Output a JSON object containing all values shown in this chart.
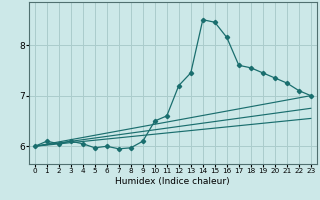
{
  "xlabel": "Humidex (Indice chaleur)",
  "bg_color": "#cce8e8",
  "grid_color": "#aacccc",
  "line_color": "#1a6e6e",
  "xlim": [
    -0.5,
    23.5
  ],
  "ylim": [
    5.65,
    8.85
  ],
  "yticks": [
    6,
    7,
    8
  ],
  "xticks": [
    0,
    1,
    2,
    3,
    4,
    5,
    6,
    7,
    8,
    9,
    10,
    11,
    12,
    13,
    14,
    15,
    16,
    17,
    18,
    19,
    20,
    21,
    22,
    23
  ],
  "series_main": [
    [
      0,
      6.0
    ],
    [
      1,
      6.1
    ],
    [
      2,
      6.05
    ],
    [
      3,
      6.1
    ],
    [
      4,
      6.05
    ],
    [
      5,
      5.97
    ],
    [
      6,
      6.0
    ],
    [
      7,
      5.95
    ],
    [
      8,
      5.97
    ],
    [
      9,
      6.1
    ],
    [
      10,
      6.5
    ],
    [
      11,
      6.6
    ],
    [
      12,
      7.2
    ],
    [
      13,
      7.45
    ],
    [
      14,
      8.5
    ],
    [
      15,
      8.45
    ],
    [
      16,
      8.15
    ],
    [
      17,
      7.6
    ],
    [
      18,
      7.55
    ],
    [
      19,
      7.45
    ],
    [
      20,
      7.35
    ],
    [
      21,
      7.25
    ],
    [
      22,
      7.1
    ],
    [
      23,
      7.0
    ]
  ],
  "series_line1": [
    [
      0,
      6.0
    ],
    [
      23,
      7.0
    ]
  ],
  "series_line2": [
    [
      0,
      6.0
    ],
    [
      23,
      6.75
    ]
  ],
  "series_line3": [
    [
      0,
      6.0
    ],
    [
      23,
      6.55
    ]
  ]
}
